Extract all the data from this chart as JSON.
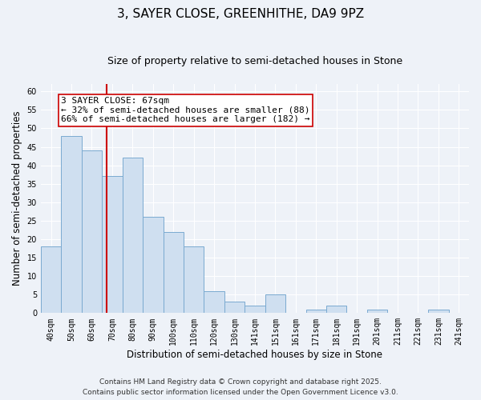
{
  "title": "3, SAYER CLOSE, GREENHITHE, DA9 9PZ",
  "subtitle": "Size of property relative to semi-detached houses in Stone",
  "xlabel": "Distribution of semi-detached houses by size in Stone",
  "ylabel": "Number of semi-detached properties",
  "bar_labels": [
    "40sqm",
    "50sqm",
    "60sqm",
    "70sqm",
    "80sqm",
    "90sqm",
    "100sqm",
    "110sqm",
    "120sqm",
    "130sqm",
    "141sqm",
    "151sqm",
    "161sqm",
    "171sqm",
    "181sqm",
    "191sqm",
    "201sqm",
    "211sqm",
    "221sqm",
    "231sqm",
    "241sqm"
  ],
  "bar_values": [
    18,
    48,
    44,
    37,
    42,
    26,
    22,
    18,
    6,
    3,
    2,
    5,
    0,
    1,
    2,
    0,
    1,
    0,
    0,
    1,
    0
  ],
  "bar_color": "#cfdff0",
  "bar_edge_color": "#7aaad0",
  "vline_color": "#cc0000",
  "vline_x_index": 2.72,
  "annotation_text": "3 SAYER CLOSE: 67sqm\n← 32% of semi-detached houses are smaller (88)\n66% of semi-detached houses are larger (182) →",
  "annotation_box_color": "white",
  "annotation_box_edge": "#cc0000",
  "ylim": [
    0,
    62
  ],
  "yticks": [
    0,
    5,
    10,
    15,
    20,
    25,
    30,
    35,
    40,
    45,
    50,
    55,
    60
  ],
  "bg_color": "#eef2f8",
  "grid_color": "#ffffff",
  "footer_line1": "Contains HM Land Registry data © Crown copyright and database right 2025.",
  "footer_line2": "Contains public sector information licensed under the Open Government Licence v3.0.",
  "title_fontsize": 11,
  "subtitle_fontsize": 9,
  "axis_label_fontsize": 8.5,
  "tick_fontsize": 7,
  "annotation_fontsize": 8,
  "footer_fontsize": 6.5
}
